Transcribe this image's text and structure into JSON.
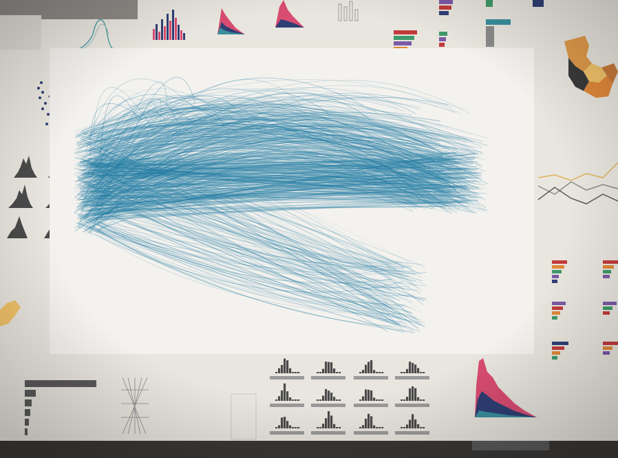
{
  "scene": {
    "description_tag": "projected-visualization-wall",
    "colors": {
      "wall": "#ece9e2",
      "panel": "#f4f2ee",
      "edge_bundle": "#1f7aa3",
      "hist_dark": "#4a4a4a",
      "hist_pink": "#d94c72",
      "hist_navy": "#2f3f74",
      "hist_teal": "#3a8f9e",
      "bar_orange": "#e0883a",
      "bar_red": "#c23b3b",
      "bar_green": "#3f9a6a",
      "bar_purple": "#7b5aa6",
      "map_orange": "#e09a4a",
      "map_dark": "#3a3a3a",
      "line_gray": "#8a8a8a"
    }
  }
}
